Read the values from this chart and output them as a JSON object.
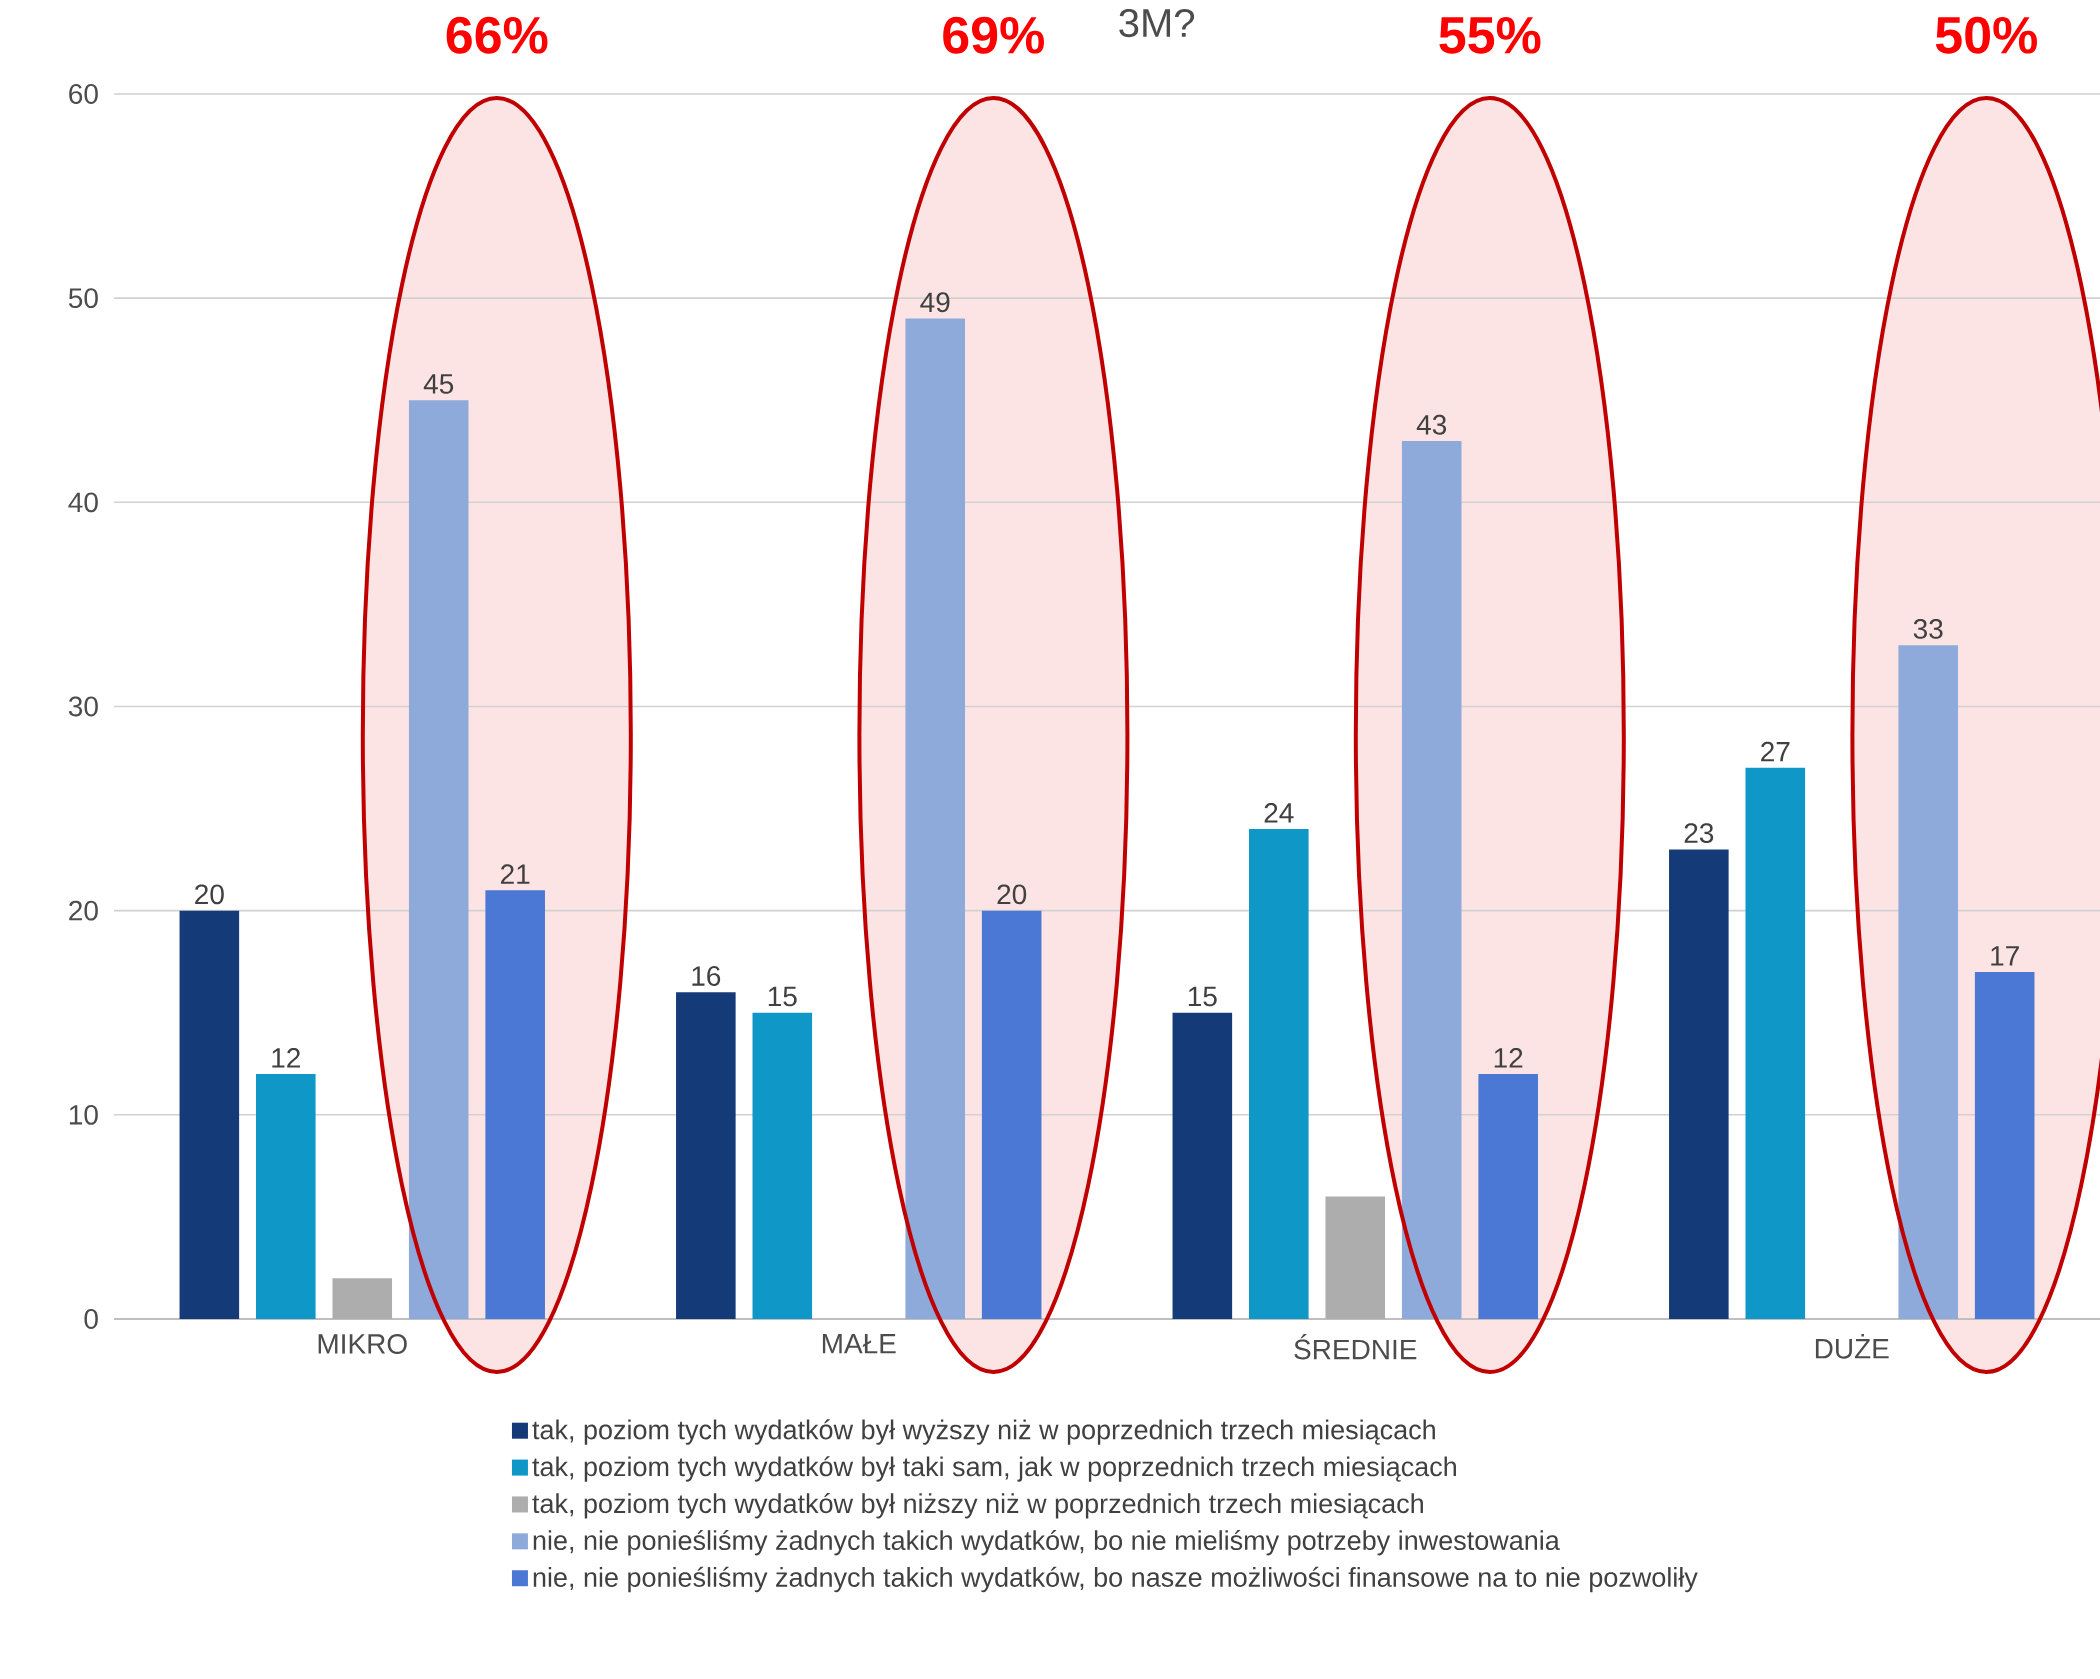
{
  "chart_data": {
    "type": "bar",
    "categories": [
      "MIKRO",
      "MAŁE",
      "ŚREDNIE",
      "DUŻE"
    ],
    "series": [
      {
        "name": "tak, poziom tych wydatków był wyższy niż w poprzednich trzech miesiącach",
        "color": "#153a78",
        "values": [
          20,
          16,
          15,
          23
        ],
        "value_labels": [
          "20",
          "16",
          "15",
          "23"
        ]
      },
      {
        "name": "tak, poziom tych wydatków był taki sam, jak w poprzednich trzech miesiącach",
        "color": "#0f97c8",
        "values": [
          12,
          15,
          24,
          27
        ],
        "value_labels": [
          "12",
          "15",
          "24",
          "27"
        ]
      },
      {
        "name": "tak, poziom tych wydatków był niższy niż w poprzednich trzech miesiącach",
        "color": "#adadad",
        "values": [
          2,
          null,
          6,
          null
        ],
        "value_labels": [
          null,
          null,
          null,
          null
        ]
      },
      {
        "name": "nie, nie ponieśliśmy żadnych takich wydatków, bo nie mieliśmy potrzeby inwestowania",
        "color": "#8eaadb",
        "values": [
          45,
          49,
          43,
          33
        ],
        "value_labels": [
          "45",
          "49",
          "43",
          "33"
        ]
      },
      {
        "name": "nie, nie ponieśliśmy żadnych takich wydatków, bo nasze możliwości finansowe na to nie pozwoliły",
        "color": "#4a78d4",
        "values": [
          21,
          20,
          12,
          17
        ],
        "value_labels": [
          "21",
          "20",
          "12",
          "17"
        ]
      }
    ],
    "ylim": [
      0,
      60
    ],
    "yticks": [
      0,
      10,
      20,
      30,
      40,
      50,
      60
    ],
    "grid": "y",
    "legend": "bottom",
    "annotations": [
      "66%",
      "69%",
      "55%",
      "50%",
      "3M?"
    ]
  }
}
